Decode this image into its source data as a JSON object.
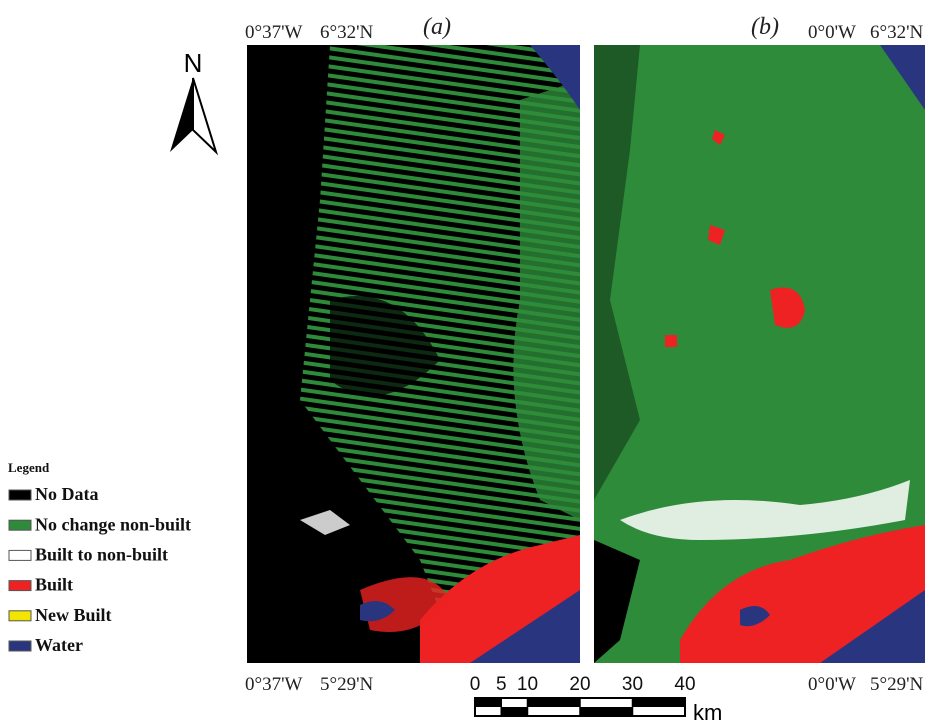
{
  "panels": [
    {
      "label": "(a)",
      "top_left": "0°37'W",
      "top_right": "6°32'N",
      "bottom_left": "0°37'W",
      "bottom_right": "5°29'N"
    },
    {
      "label": "(b)",
      "top_left": "0°0'W",
      "top_right": "6°32'N",
      "bottom_left": "0°0'W",
      "bottom_right": "5°29'N"
    }
  ],
  "north": "N",
  "legend": {
    "title": "Legend",
    "items": [
      {
        "label": "No Data",
        "color": "#000000"
      },
      {
        "label": "No change non-built",
        "color": "#2e8b3a"
      },
      {
        "label": "Built to non-built",
        "color": "#ffffff"
      },
      {
        "label": "Built",
        "color": "#ee2222"
      },
      {
        "label": "New Built",
        "color": "#f2e600"
      },
      {
        "label": "Water",
        "color": "#2a3580"
      }
    ]
  },
  "scale_bar": {
    "ticks": [
      0,
      5,
      10,
      20,
      30,
      40
    ],
    "unit": "km"
  }
}
